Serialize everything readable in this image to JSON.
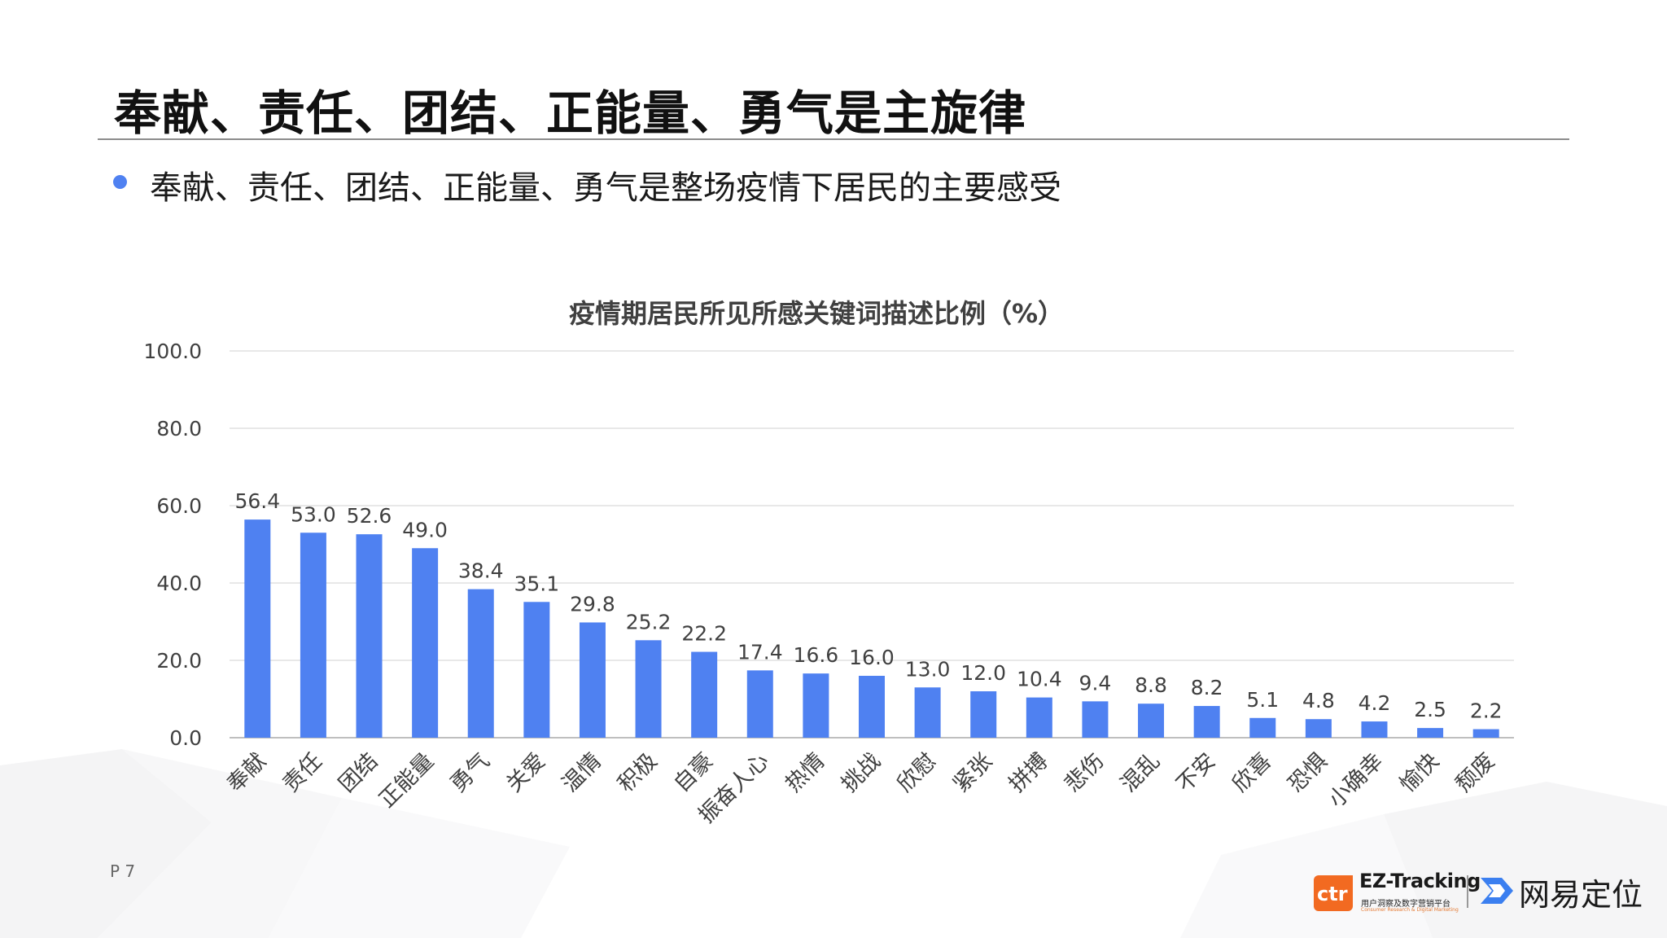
{
  "slide": {
    "title": "奉献、责任、团结、正能量、勇气是主旋律",
    "bullet": "奉献、责任、团结、正能量、勇气是整场疫情下居民的主要感受",
    "page_number": "P 7"
  },
  "colors": {
    "bar": "#4f81f1",
    "bullet": "#4f81f1",
    "grid": "#d9d9d9"
  },
  "chart_data": {
    "type": "bar",
    "title": "疫情期居民所见所感关键词描述比例（%）",
    "categories": [
      "奉献",
      "责任",
      "团结",
      "正能量",
      "勇气",
      "关爱",
      "温情",
      "积极",
      "自豪",
      "振奋人心",
      "热情",
      "挑战",
      "欣慰",
      "紧张",
      "拼搏",
      "悲伤",
      "混乱",
      "不安",
      "欣喜",
      "恐惧",
      "小确幸",
      "愉快",
      "颓废"
    ],
    "values": [
      56.4,
      53.0,
      52.6,
      49.0,
      38.4,
      35.1,
      29.8,
      25.2,
      22.2,
      17.4,
      16.6,
      16.0,
      13.0,
      12.0,
      10.4,
      9.4,
      8.8,
      8.2,
      5.1,
      4.8,
      4.2,
      2.5,
      2.2
    ],
    "value_labels": [
      "56.4",
      "53.0",
      "52.6",
      "49.0",
      "38.4",
      "35.1",
      "29.8",
      "25.2",
      "22.2",
      "17.4",
      "16.6",
      "16.0",
      "13.0",
      "12.0",
      "10.4",
      "9.4",
      "8.8",
      "8.2",
      "5.1",
      "4.8",
      "4.2",
      "2.5",
      "2.2"
    ],
    "y_ticks": [
      "0.0",
      "20.0",
      "40.0",
      "60.0",
      "80.0",
      "100.0"
    ],
    "ylim": [
      0,
      100
    ],
    "grid": true,
    "legend": "none"
  },
  "logos": {
    "ctr": "ctr",
    "ez_tracking": "EZ-Tracking",
    "ez_tracking_sub": "用户洞察及数字营销平台",
    "ez_tracking_sub_en": "Consumer Research & Digital Marketing",
    "wangyi": "网易定位",
    "wangyi_icon": "arrow-location-icon"
  }
}
